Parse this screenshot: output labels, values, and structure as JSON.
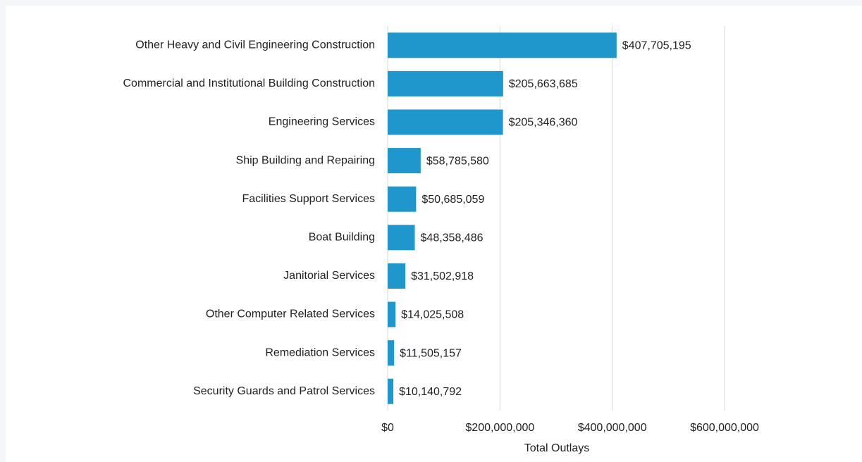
{
  "chart_data": {
    "type": "bar",
    "orientation": "horizontal",
    "x_label": "Total Outlays",
    "categories": [
      "Other Heavy and Civil Engineering Construction",
      "Commercial and Institutional Building Construction",
      "Engineering Services",
      "Ship Building and Repairing",
      "Facilities Support Services",
      "Boat Building",
      "Janitorial Services",
      "Other Computer Related Services",
      "Remediation Services",
      "Security Guards and Patrol Services"
    ],
    "values": [
      407705195,
      205663685,
      205346360,
      58785580,
      50685059,
      48358486,
      31502918,
      14025508,
      11505157,
      10140792
    ],
    "value_labels": [
      "$407,705,195",
      "$205,663,685",
      "$205,346,360",
      "$58,785,580",
      "$50,685,059",
      "$48,358,486",
      "$31,502,918",
      "$14,025,508",
      "$11,505,157",
      "$10,140,792"
    ],
    "color": "#1f97cc",
    "xlim": [
      0,
      600000000
    ],
    "xticks": [
      {
        "value": 0,
        "label": "$0"
      },
      {
        "value": 200000000,
        "label": "$200,000,000"
      },
      {
        "value": 400000000,
        "label": "$400,000,000"
      },
      {
        "value": 600000000,
        "label": "$600,000,000"
      }
    ],
    "grid": true
  }
}
